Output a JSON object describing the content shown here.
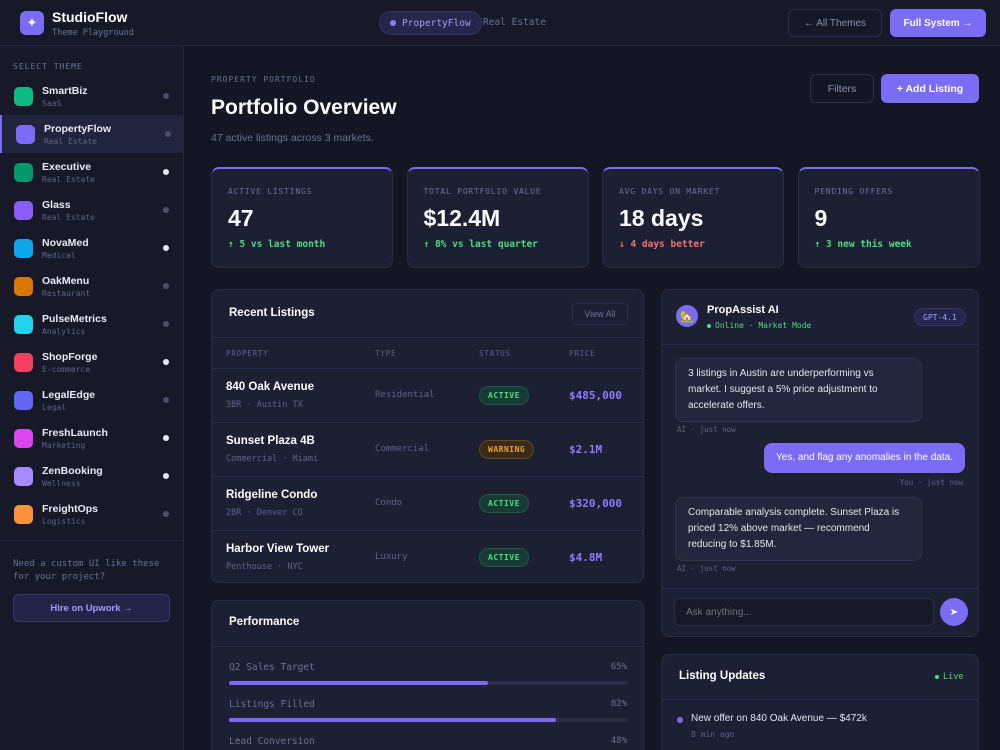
{
  "app": {
    "name": "StudioFlow",
    "subtitle": "Theme Playground",
    "current_theme": "PropertyFlow",
    "current_category": "Real Estate",
    "all_themes_label": "← All Themes",
    "full_system_label": "Full System →",
    "accent": "#7b6cf6"
  },
  "sidebar": {
    "heading": "SELECT THEME",
    "themes": [
      {
        "name": "SmartBiz",
        "category": "SaaS",
        "color": "#10b981",
        "status": "#4b4f6b"
      },
      {
        "name": "PropertyFlow",
        "category": "Real Estate",
        "color": "#7b6cf6",
        "status": "#4b4f6b",
        "active": true
      },
      {
        "name": "Executive",
        "category": "Real Estate",
        "color": "#059669",
        "status": "#e7e8f3"
      },
      {
        "name": "Glass",
        "category": "Real Estate",
        "color": "#8b5cf6",
        "status": "#4b4f6b"
      },
      {
        "name": "NovaMed",
        "category": "Medical",
        "color": "#0ea5e9",
        "status": "#e7e8f3"
      },
      {
        "name": "OakMenu",
        "category": "Restaurant",
        "color": "#d97706",
        "status": "#4b4f6b"
      },
      {
        "name": "PulseMetrics",
        "category": "Analytics",
        "color": "#22d3ee",
        "status": "#4b4f6b"
      },
      {
        "name": "ShopForge",
        "category": "E-commerce",
        "color": "#f43f5e",
        "status": "#e7e8f3"
      },
      {
        "name": "LegalEdge",
        "category": "Legal",
        "color": "#6366f1",
        "status": "#4b4f6b"
      },
      {
        "name": "FreshLaunch",
        "category": "Marketing",
        "color": "#d946ef",
        "status": "#e7e8f3"
      },
      {
        "name": "ZenBooking",
        "category": "Wellness",
        "color": "#a78bfa",
        "status": "#e7e8f3"
      },
      {
        "name": "FreightOps",
        "category": "Logistics",
        "color": "#fb923c",
        "status": "#4b4f6b"
      }
    ],
    "cta_text": "Need a custom UI like these for your project?",
    "cta_button": "Hire on Upwork →"
  },
  "header": {
    "eyebrow": "PROPERTY PORTFOLIO",
    "title": "Portfolio Overview",
    "subtitle": "47 active listings across 3 markets.",
    "filters_label": "Filters",
    "add_label": "+ Add Listing"
  },
  "stats": [
    {
      "label": "ACTIVE LISTINGS",
      "value": "47",
      "change": "↑ 5 vs last month",
      "change_color": "#4ade80"
    },
    {
      "label": "TOTAL PORTFOLIO VALUE",
      "value": "$12.4M",
      "change": "↑ 8% vs last quarter",
      "change_color": "#4ade80"
    },
    {
      "label": "AVG DAYS ON MARKET",
      "value": "18 days",
      "change": "↓ 4 days better",
      "change_color": "#f87171"
    },
    {
      "label": "PENDING OFFERS",
      "value": "9",
      "change": "↑ 3 new this week",
      "change_color": "#4ade80"
    }
  ],
  "listings": {
    "title": "Recent Listings",
    "view_all": "View All",
    "columns": [
      "PROPERTY",
      "TYPE",
      "STATUS",
      "PRICE"
    ],
    "rows": [
      {
        "name": "840 Oak Avenue",
        "detail": "3BR · Austin TX",
        "type": "Residential",
        "status": "ACTIVE",
        "status_kind": "active",
        "price": "$485,000"
      },
      {
        "name": "Sunset Plaza 4B",
        "detail": "Commercial · Miami",
        "type": "Commercial",
        "status": "WARNING",
        "status_kind": "warning",
        "price": "$2.1M"
      },
      {
        "name": "Ridgeline Condo",
        "detail": "2BR · Denver CO",
        "type": "Condo",
        "status": "ACTIVE",
        "status_kind": "active",
        "price": "$320,000"
      },
      {
        "name": "Harbor View Tower",
        "detail": "Penthouse · NYC",
        "type": "Luxury",
        "status": "ACTIVE",
        "status_kind": "active",
        "price": "$4.8M"
      }
    ]
  },
  "performance": {
    "title": "Performance",
    "items": [
      {
        "label": "Q2 Sales Target",
        "value": "65%",
        "fraction": 0.65
      },
      {
        "label": "Listings Filled",
        "value": "82%",
        "fraction": 0.82
      },
      {
        "label": "Lead Conversion",
        "value": "48%",
        "fraction": 0.48
      }
    ]
  },
  "assistant": {
    "name": "PropAssist AI",
    "status": "Online · Market Mode",
    "model": "GPT-4.1",
    "messages": [
      {
        "from": "ai",
        "text": "3 listings in Austin are underperforming vs market. I suggest a 5% price adjustment to accelerate offers.",
        "meta": "AI · just now"
      },
      {
        "from": "user",
        "text": "Yes, and flag any anomalies in the data.",
        "meta": "You · just now"
      },
      {
        "from": "ai",
        "text": "Comparable analysis complete. Sunset Plaza is priced 12% above market — recommend reducing to $1.85M.",
        "meta": "AI · just now"
      }
    ],
    "input_placeholder": "Ask anything..."
  },
  "updates": {
    "title": "Listing Updates",
    "live_label": "Live",
    "items": [
      {
        "text": "New offer on 840 Oak Avenue — $472k",
        "time": "8 min ago"
      }
    ]
  }
}
